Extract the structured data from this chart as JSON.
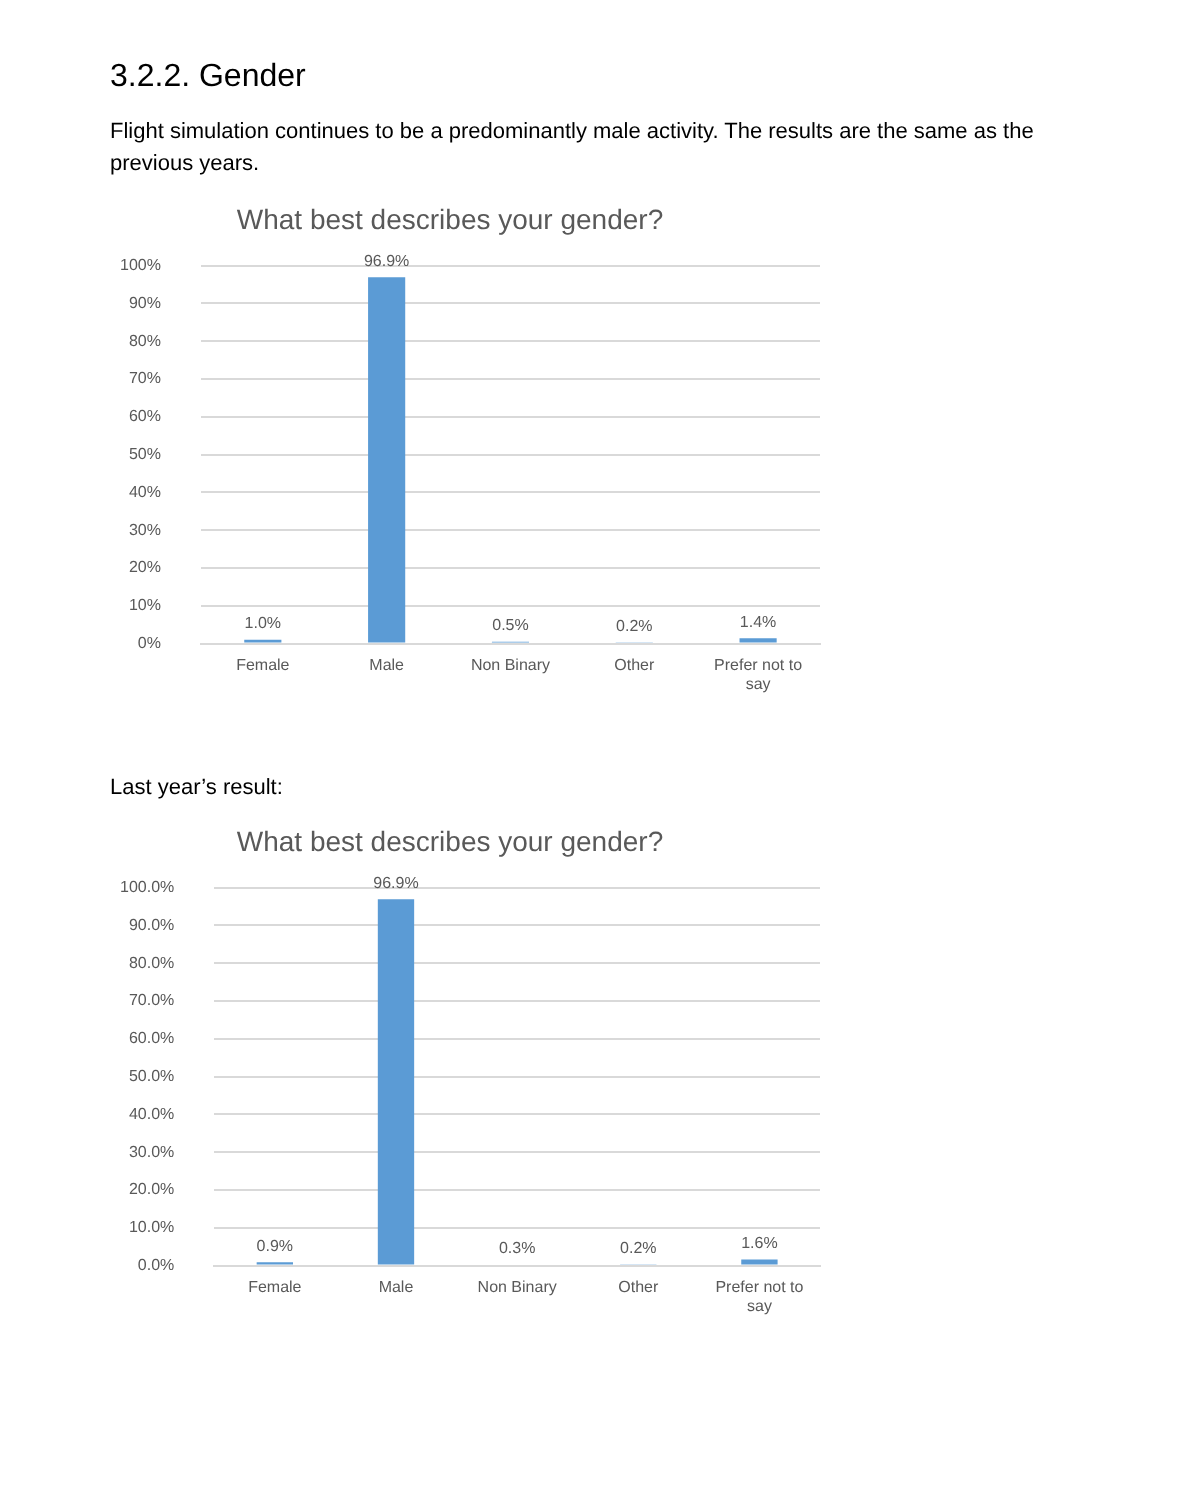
{
  "chart_data": [
    {
      "type": "bar",
      "title": "What best describes your gender?",
      "annotations": [
        "3.2.2. Gender",
        "Flight simulation continues to be a predominantly male activity. The results are the same as the previous years."
      ],
      "categories": [
        "Female",
        "Male",
        "Non Binary",
        "Other",
        "Prefer not to say"
      ],
      "values": [
        1.0,
        96.9,
        0.5,
        0.2,
        1.4
      ],
      "color": "#5b9bd5",
      "value_labels": [
        "1.0%",
        "96.9%",
        "0.5%",
        "0.2%",
        "1.4%"
      ],
      "ylim": [
        0,
        100
      ],
      "yticks": [
        {
          "value": 0,
          "label": "0%"
        },
        {
          "value": 10,
          "label": "10%"
        },
        {
          "value": 20,
          "label": "20%"
        },
        {
          "value": 30,
          "label": "30%"
        },
        {
          "value": 40,
          "label": "40%"
        },
        {
          "value": 50,
          "label": "50%"
        },
        {
          "value": 60,
          "label": "60%"
        },
        {
          "value": 70,
          "label": "70%"
        },
        {
          "value": 80,
          "label": "80%"
        },
        {
          "value": 90,
          "label": "90%"
        },
        {
          "value": 100,
          "label": "100%"
        }
      ],
      "grid": "y",
      "legend": false
    },
    {
      "type": "bar",
      "title": "What best describes your gender?",
      "annotations": [
        "Last year’s result:"
      ],
      "categories": [
        "Female",
        "Male",
        "Non Binary",
        "Other",
        "Prefer not to say"
      ],
      "values": [
        0.9,
        96.9,
        0.3,
        0.2,
        1.6
      ],
      "color": "#5b9bd5",
      "value_labels": [
        "0.9%",
        "96.9%",
        "0.3%",
        "0.2%",
        "1.6%"
      ],
      "ylim": [
        0,
        100
      ],
      "yticks": [
        {
          "value": 0,
          "label": "0.0%"
        },
        {
          "value": 10,
          "label": "10.0%"
        },
        {
          "value": 20,
          "label": "20.0%"
        },
        {
          "value": 30,
          "label": "30.0%"
        },
        {
          "value": 40,
          "label": "40.0%"
        },
        {
          "value": 50,
          "label": "50.0%"
        },
        {
          "value": 60,
          "label": "60.0%"
        },
        {
          "value": 70,
          "label": "70.0%"
        },
        {
          "value": 80,
          "label": "80.0%"
        },
        {
          "value": 90,
          "label": "90.0%"
        },
        {
          "value": 100,
          "label": "100.0%"
        }
      ],
      "grid": "y",
      "legend": false
    }
  ]
}
